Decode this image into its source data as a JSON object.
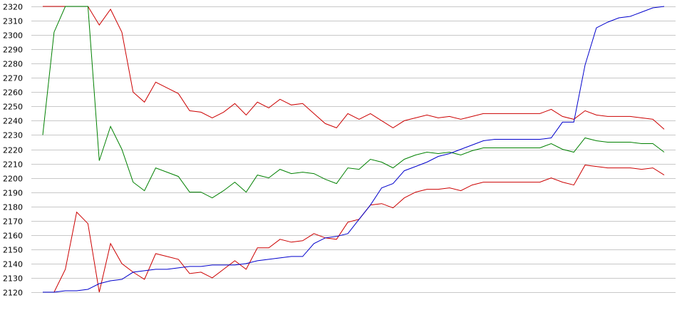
{
  "chart_data": {
    "type": "line",
    "xlabel": "",
    "ylabel": "",
    "ylim": [
      2120,
      2320
    ],
    "yticks": [
      2120,
      2130,
      2140,
      2150,
      2160,
      2170,
      2180,
      2190,
      2200,
      2210,
      2220,
      2230,
      2240,
      2250,
      2260,
      2270,
      2280,
      2290,
      2300,
      2310,
      2320
    ],
    "ytick_labels": [
      "2120",
      "2130",
      "2140",
      "2150",
      "2160",
      "2170",
      "2180",
      "2190",
      "2200",
      "2210",
      "2220",
      "2230",
      "2240",
      "2250",
      "2260",
      "2270",
      "2280",
      "2290",
      "2300",
      "2310",
      "2320"
    ],
    "grid": true,
    "series": [
      {
        "color": "#cc0000",
        "values": [
          2320,
          2320,
          2320,
          2320,
          2320,
          2307,
          2318,
          2302,
          2260,
          2253,
          2267,
          2263,
          2259,
          2247,
          2246,
          2242,
          2246,
          2252,
          2244,
          2253,
          2249,
          2255,
          2251,
          2252,
          2245,
          2238,
          2235,
          2245,
          2241,
          2245,
          2240,
          2235,
          2240,
          2242,
          2244,
          2242,
          2243,
          2241,
          2243,
          2245,
          2245,
          2245,
          2245,
          2245,
          2245,
          2248,
          2243,
          2241,
          2247,
          2244,
          2243,
          2243,
          2243,
          2242,
          2241,
          2234
        ]
      },
      {
        "color": "#008000",
        "values": [
          2230,
          2302,
          2320,
          2320,
          2320,
          2212,
          2236,
          2220,
          2197,
          2191,
          2207,
          2204,
          2201,
          2190,
          2190,
          2186,
          2191,
          2197,
          2190,
          2202,
          2200,
          2206,
          2203,
          2204,
          2203,
          2199,
          2196,
          2207,
          2206,
          2213,
          2211,
          2207,
          2213,
          2216,
          2218,
          2217,
          2218,
          2216,
          2219,
          2221,
          2221,
          2221,
          2221,
          2221,
          2221,
          2224,
          2220,
          2218,
          2228,
          2226,
          2225,
          2225,
          2225,
          2224,
          2224,
          2218
        ]
      },
      {
        "color": "#cc0000",
        "values": [
          2120,
          2120,
          2136,
          2176,
          2168,
          2120,
          2154,
          2140,
          2134,
          2129,
          2147,
          2145,
          2143,
          2133,
          2134,
          2130,
          2136,
          2142,
          2136,
          2151,
          2151,
          2157,
          2155,
          2156,
          2161,
          2158,
          2157,
          2169,
          2171,
          2181,
          2182,
          2179,
          2186,
          2190,
          2192,
          2192,
          2193,
          2191,
          2195,
          2197,
          2197,
          2197,
          2197,
          2197,
          2197,
          2200,
          2197,
          2195,
          2209,
          2208,
          2207,
          2207,
          2207,
          2206,
          2207,
          2202
        ]
      },
      {
        "color": "#0000cc",
        "values": [
          2120,
          2120,
          2121,
          2121,
          2122,
          2126,
          2128,
          2129,
          2134,
          2135,
          2136,
          2136,
          2137,
          2138,
          2138,
          2139,
          2139,
          2139,
          2140,
          2142,
          2143,
          2144,
          2145,
          2145,
          2154,
          2158,
          2159,
          2161,
          2171,
          2181,
          2193,
          2196,
          2205,
          2208,
          2211,
          2215,
          2217,
          2220,
          2223,
          2226,
          2227,
          2227,
          2227,
          2227,
          2227,
          2228,
          2239,
          2239,
          2279,
          2305,
          2309,
          2312,
          2313,
          2316,
          2319,
          2320
        ]
      }
    ]
  }
}
